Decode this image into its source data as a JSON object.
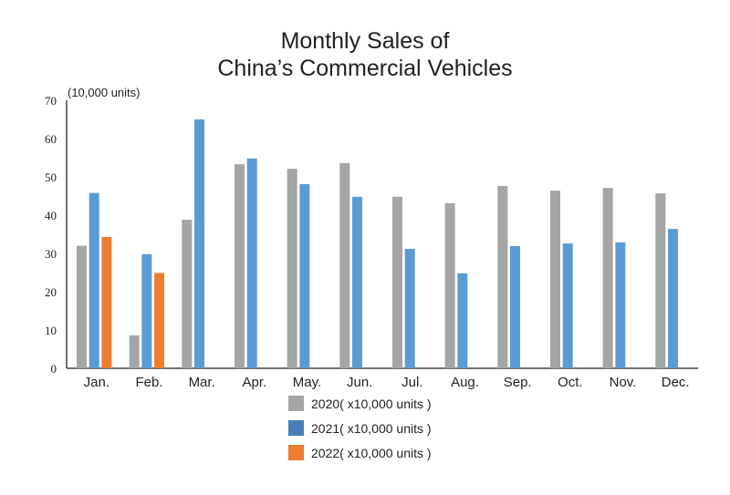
{
  "chart_data": {
    "type": "bar",
    "title_line1": "Monthly Sales of",
    "title_line2": "China’s Commercial Vehicles",
    "ylabel": "(10,000 units)",
    "ylim": [
      0,
      70
    ],
    "yticks": [
      0,
      10,
      20,
      30,
      40,
      50,
      60,
      70
    ],
    "grid": false,
    "legend_position": "bottom",
    "categories": [
      "Jan.",
      "Feb.",
      "Mar.",
      "Apr.",
      "May.",
      "Jun.",
      "Jul.",
      "Aug.",
      "Sep.",
      "Oct.",
      "Nov.",
      "Dec."
    ],
    "series": [
      {
        "name": "2020( x10,000 units )",
        "color": "#a5a5a5",
        "legend_color": "#a5a5a5",
        "values": [
          32,
          8.6,
          38.8,
          53.3,
          52.1,
          53.6,
          44.8,
          43.1,
          47.6,
          46.4,
          47.1,
          45.7
        ]
      },
      {
        "name": "2021( x10,000 units )",
        "color": "#5b9bd5",
        "legend_color": "#4a7ebb",
        "values": [
          45.8,
          29.8,
          65.0,
          54.8,
          48.1,
          44.8,
          31.2,
          24.8,
          31.9,
          32.6,
          32.9,
          36.4
        ]
      },
      {
        "name": "2022( x10,000 units )",
        "color": "#ed7d31",
        "legend_color": "#ed7d31",
        "values": [
          34.3,
          24.9,
          null,
          null,
          null,
          null,
          null,
          null,
          null,
          null,
          null,
          null
        ]
      }
    ]
  }
}
